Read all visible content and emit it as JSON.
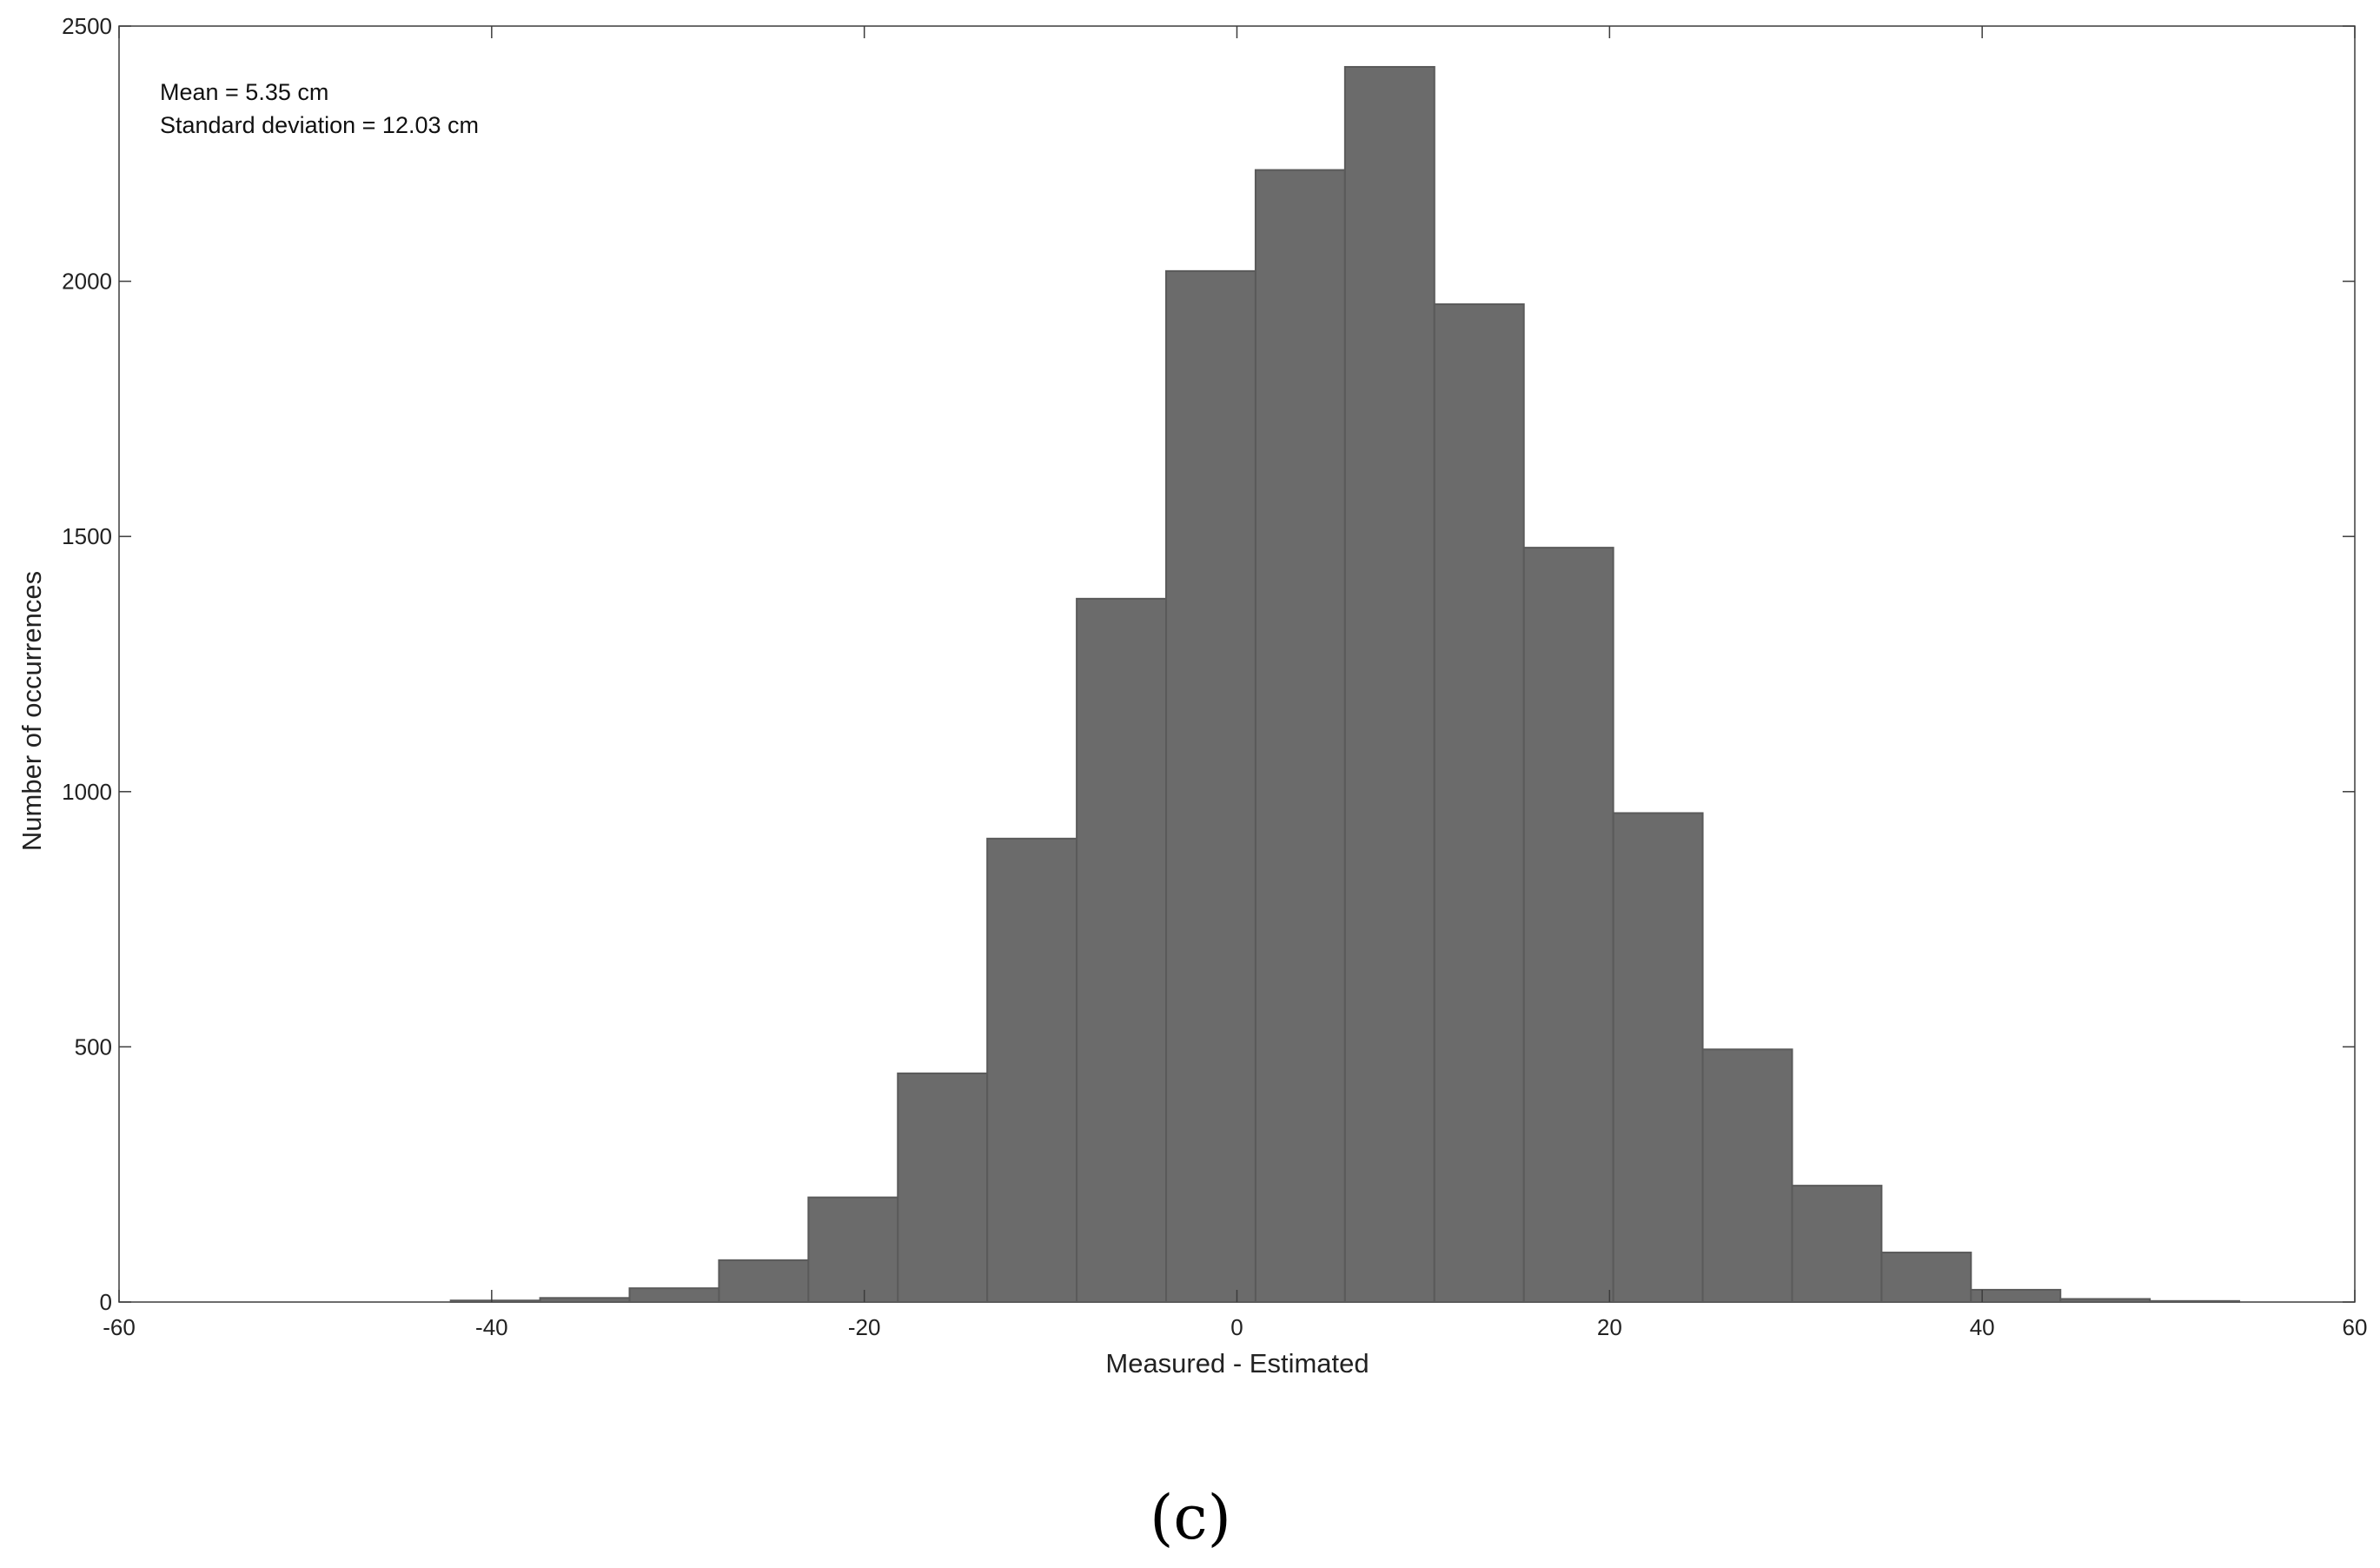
{
  "chart_data": {
    "type": "bar",
    "subtype": "histogram",
    "xlabel": "Measured - Estimated",
    "ylabel": "Number of occurrences",
    "xlim": [
      -60,
      60
    ],
    "ylim": [
      0,
      2500
    ],
    "xticks": [
      -60,
      -40,
      -20,
      0,
      20,
      40,
      60
    ],
    "yticks": [
      0,
      500,
      1000,
      1500,
      2000,
      2500
    ],
    "bin_edges": [
      -42.2,
      -37.4,
      -32.6,
      -27.8,
      -23.0,
      -18.2,
      -13.4,
      -8.6,
      -3.8,
      1.0,
      5.8,
      10.6,
      15.4,
      20.2,
      25.0,
      29.8,
      34.6,
      39.4,
      44.2,
      49.0,
      53.8
    ],
    "values": [
      3,
      8,
      27,
      82,
      205,
      448,
      908,
      1378,
      2020,
      2218,
      2420,
      1955,
      1478,
      958,
      495,
      228,
      97,
      24,
      6,
      2
    ],
    "bar_color": "#6b6b6b",
    "bar_edge_color": "#5a5a5a",
    "grid": false,
    "box": true
  },
  "annotations": {
    "mean": "Mean = 5.35 cm",
    "std": "Standard deviation = 12.03 cm"
  },
  "panel_label": "(c)"
}
